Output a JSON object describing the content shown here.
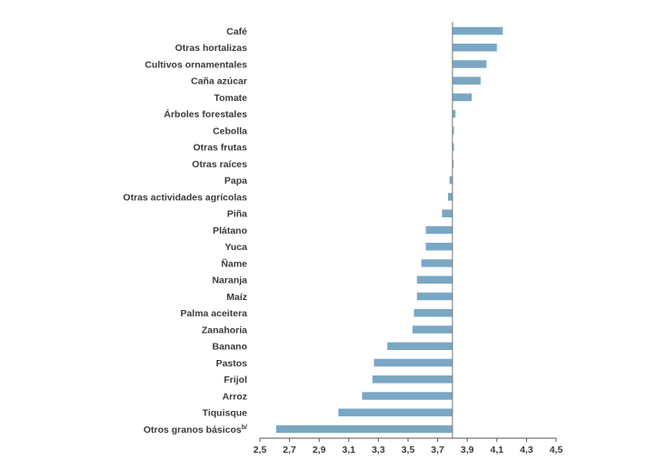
{
  "chart_data": {
    "type": "bar",
    "orientation": "horizontal",
    "title": "",
    "xlabel": "",
    "ylabel": "",
    "baseline": 3.8,
    "xlim": [
      2.5,
      4.5
    ],
    "xticks": [
      "2,5",
      "2,7",
      "2,9",
      "3,1",
      "3,3",
      "3,5",
      "3,7",
      "3,9",
      "4,1",
      "4,3",
      "4,5"
    ],
    "categories": [
      "Café",
      "Otras hortalizas",
      "Cultivos ornamentales",
      "Caña azúcar",
      "Tomate",
      "Árboles forestales",
      "Cebolla",
      "Otras frutas",
      "Otras raíces",
      "Papa",
      "Otras actividades agrícolas",
      "Piña",
      "Plátano",
      "Yuca",
      "Ñame",
      "Naranja",
      "Maíz",
      "Palma aceitera",
      "Zanahoria",
      "Banano",
      "Pastos",
      "Frijol",
      "Arroz",
      "Tiquisque",
      "Otros granos básicos"
    ],
    "category_superscripts": {
      "Otros granos básicos": "b/"
    },
    "values": [
      4.14,
      4.1,
      4.03,
      3.99,
      3.93,
      3.82,
      3.81,
      3.81,
      3.8,
      3.78,
      3.77,
      3.73,
      3.62,
      3.62,
      3.59,
      3.56,
      3.56,
      3.54,
      3.53,
      3.36,
      3.27,
      3.26,
      3.19,
      3.03,
      2.61
    ],
    "colors": {
      "bar": "#7aa7c4",
      "text": "#3a3a3a",
      "axis": "#555555"
    },
    "legend": "none",
    "grid": false
  }
}
